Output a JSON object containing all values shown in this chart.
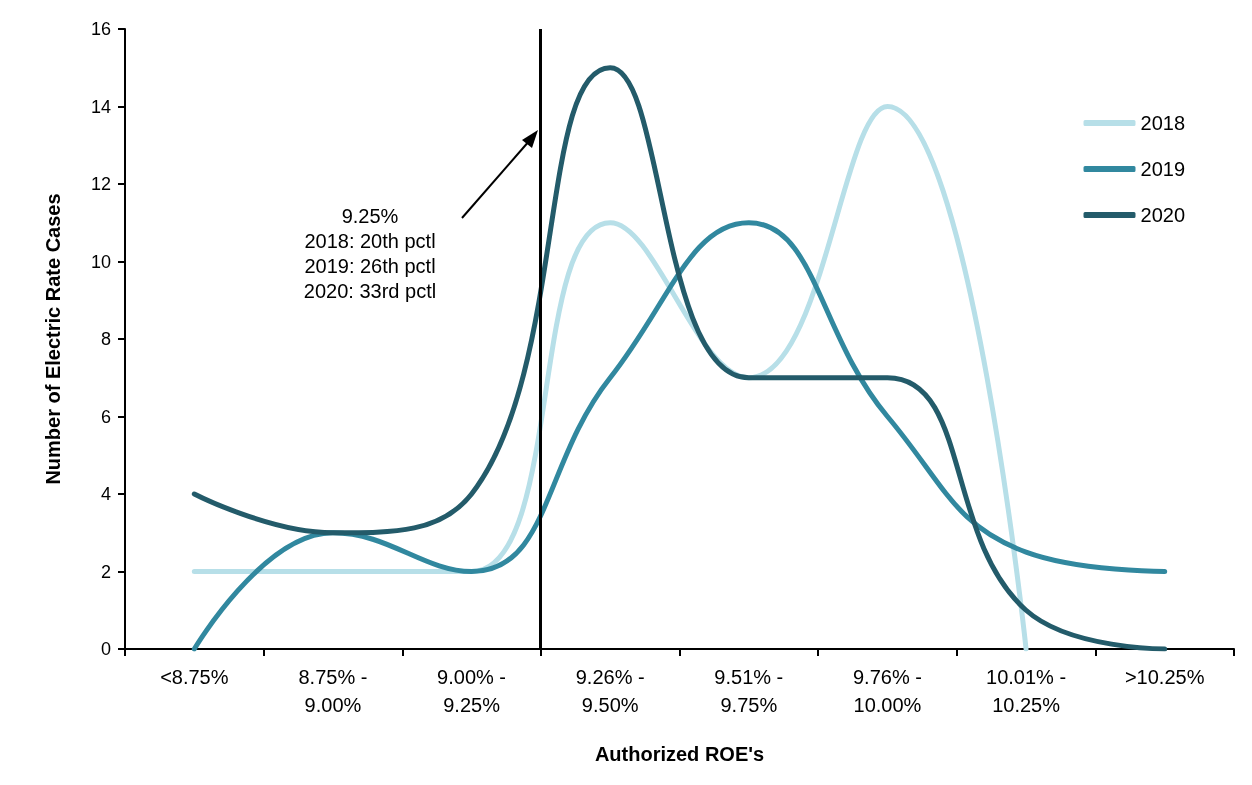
{
  "chart_data": {
    "type": "line",
    "xlabel": "Authorized ROE's",
    "ylabel": "Number of Electric Rate Cases",
    "categories": [
      "<8.75%",
      "8.75% - 9.00%",
      "9.00% - 9.25%",
      "9.26% - 9.50%",
      "9.51% - 9.75%",
      "9.76% - 10.00%",
      "10.01% - 10.25%",
      ">10.25%"
    ],
    "series": [
      {
        "name": "2018",
        "color": "#b7dfe8",
        "values": [
          2,
          2,
          2,
          11,
          7,
          14,
          0,
          null
        ]
      },
      {
        "name": "2019",
        "color": "#31889f",
        "values": [
          0,
          3,
          2,
          7,
          11,
          6,
          2.5,
          2
        ]
      },
      {
        "name": "2020",
        "color": "#235b6a",
        "values": [
          4,
          3,
          4,
          15,
          7,
          7,
          1,
          0
        ]
      }
    ],
    "ylim": [
      0,
      16
    ],
    "yticks": [
      0,
      2,
      4,
      6,
      8,
      10,
      12,
      14,
      16
    ],
    "grid": false,
    "legend": "top right",
    "marker": "none",
    "line_style": "solid",
    "annotations": [
      "9.25%\n2018: 20th pctl\n2019: 26th pctl\n2020: 33rd pctl"
    ]
  }
}
